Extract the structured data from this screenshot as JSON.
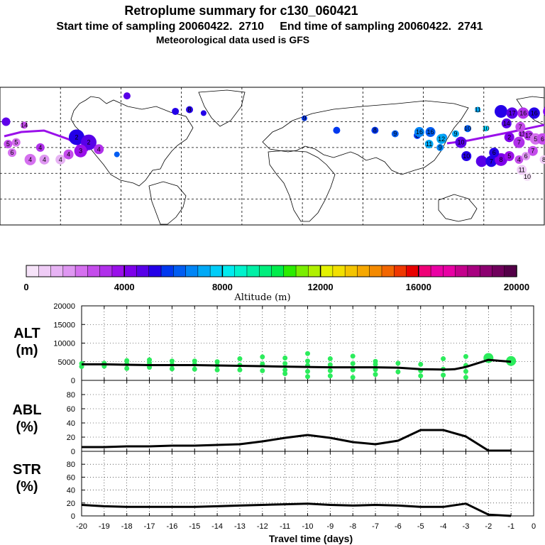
{
  "header": {
    "title": "Retroplume summary for c130_060421",
    "sampling": "Start time of sampling 20060422.  2710     End time of sampling 20060422.  2741",
    "met": "Meteorological data used is GFS"
  },
  "colorbar": {
    "label": "Altitude (m)",
    "ticks": [
      "0",
      "4000",
      "8000",
      "12000",
      "16000",
      "20000"
    ],
    "colors": [
      "#f6e3f9",
      "#efccf6",
      "#e7b3f4",
      "#df97f2",
      "#d570ef",
      "#c44ceb",
      "#b030ea",
      "#9a10ea",
      "#7d00ea",
      "#5800e8",
      "#2400e8",
      "#0038ef",
      "#005df2",
      "#0085f6",
      "#00a9f6",
      "#00cdf8",
      "#00ebef",
      "#00f2cc",
      "#00f0a6",
      "#00ee7d",
      "#00ec4c",
      "#2cec00",
      "#7aee00",
      "#b0f000",
      "#e4f200",
      "#f2e000",
      "#f4c400",
      "#f6a800",
      "#f48a00",
      "#f26600",
      "#ef3800",
      "#e80000",
      "#ef0077",
      "#ea00a4",
      "#e800a4",
      "#c4008c",
      "#a80080",
      "#8c0070",
      "#70005c",
      "#540048"
    ]
  },
  "map": {
    "markers": [
      {
        "lon": -177,
        "lat": 60,
        "r": 6,
        "c": "#5f00ea",
        "t": ""
      },
      {
        "lon": -168,
        "lat": 58,
        "r": 5,
        "c": "#c44ceb",
        "t": "14"
      },
      {
        "lon": -172,
        "lat": 48,
        "r": 6,
        "c": "#d570ef",
        "t": "5"
      },
      {
        "lon": -176,
        "lat": 47,
        "r": 6,
        "c": "#c44ceb",
        "t": "5"
      },
      {
        "lon": -174,
        "lat": 42,
        "r": 6,
        "c": "#d570ef",
        "t": "6"
      },
      {
        "lon": -165,
        "lat": 38,
        "r": 8,
        "c": "#d570ef",
        "t": "4"
      },
      {
        "lon": -158,
        "lat": 38,
        "r": 7,
        "c": "#df97f2",
        "t": "4"
      },
      {
        "lon": -150,
        "lat": 38,
        "r": 7,
        "c": "#e7b3f4",
        "t": "4"
      },
      {
        "lon": -160,
        "lat": 45,
        "r": 6,
        "c": "#b030ea",
        "t": "4"
      },
      {
        "lon": -142,
        "lat": 51,
        "r": 11,
        "c": "#2400e8",
        "t": "2"
      },
      {
        "lon": -136,
        "lat": 48,
        "r": 11,
        "c": "#5800e8",
        "t": "2"
      },
      {
        "lon": -140,
        "lat": 43,
        "r": 9,
        "c": "#9a10ea",
        "t": "3"
      },
      {
        "lon": -131,
        "lat": 44,
        "r": 7,
        "c": "#b030ea",
        "t": "4"
      },
      {
        "lon": -146,
        "lat": 41,
        "r": 7,
        "c": "#c44ceb",
        "t": "4"
      },
      {
        "lon": -122,
        "lat": 41,
        "r": 4,
        "c": "#005df2",
        "t": ""
      },
      {
        "lon": -117,
        "lat": 75,
        "r": 5,
        "c": "#5800e8",
        "t": ""
      },
      {
        "lon": -93,
        "lat": 66,
        "r": 5,
        "c": "#2400e8",
        "t": ""
      },
      {
        "lon": -86,
        "lat": 67,
        "r": 5,
        "c": "#2400e8",
        "t": "8"
      },
      {
        "lon": -79,
        "lat": 65,
        "r": 4,
        "c": "#2400e8",
        "t": ""
      },
      {
        "lon": -29,
        "lat": 62,
        "r": 4,
        "c": "#0038ef",
        "t": "9"
      },
      {
        "lon": -13,
        "lat": 55,
        "r": 5,
        "c": "#0038ef",
        "t": ""
      },
      {
        "lon": 6,
        "lat": 55,
        "r": 5,
        "c": "#0038ef",
        "t": "8"
      },
      {
        "lon": 16,
        "lat": 53,
        "r": 5,
        "c": "#005df2",
        "t": "9"
      },
      {
        "lon": 27,
        "lat": 52,
        "r": 5,
        "c": "#0038ef",
        "t": "8"
      },
      {
        "lon": 40,
        "lat": 51,
        "r": 5,
        "c": "#0085f6",
        "t": "9"
      },
      {
        "lon": 46,
        "lat": 53,
        "r": 5,
        "c": "#00a9f6",
        "t": "9"
      },
      {
        "lon": 52,
        "lat": 56,
        "r": 5,
        "c": "#005df2",
        "t": "10"
      },
      {
        "lon": 61,
        "lat": 56,
        "r": 4,
        "c": "#00cdf8",
        "t": "10"
      },
      {
        "lon": 57,
        "lat": 67,
        "r": 4,
        "c": "#00a9f6",
        "t": "11"
      },
      {
        "lon": 79,
        "lat": 53,
        "r": 5,
        "c": "#b030ea",
        "t": "11"
      },
      {
        "lon": 111,
        "lat": 54,
        "r": 7,
        "c": "#0085f6",
        "t": "16"
      },
      {
        "lon": 119,
        "lat": 54,
        "r": 7,
        "c": "#005df2",
        "t": "16"
      },
      {
        "lon": 127,
        "lat": 50,
        "r": 7,
        "c": "#00a9f6",
        "t": "12"
      },
      {
        "lon": 118,
        "lat": 47,
        "r": 6,
        "c": "#00a9f6",
        "t": "11"
      },
      {
        "lon": 126,
        "lat": 45,
        "r": 5,
        "c": "#0085f6",
        "t": "9"
      },
      {
        "lon": 141,
        "lat": 48,
        "r": 8,
        "c": "#5800e8",
        "t": "10"
      },
      {
        "lon": 145,
        "lat": 40,
        "r": 7,
        "c": "#2400e8",
        "t": "10"
      },
      {
        "lon": 156,
        "lat": 37,
        "r": 8,
        "c": "#5800e8",
        "t": ""
      },
      {
        "lon": 163,
        "lat": 37,
        "r": 8,
        "c": "#2400e8",
        "t": "7"
      },
      {
        "lon": 170,
        "lat": 38,
        "r": 9,
        "c": "#7d00ea",
        "t": "8"
      },
      {
        "lon": 165,
        "lat": 42,
        "r": 7,
        "c": "#2400e8",
        "t": "6"
      },
      {
        "lon": 170,
        "lat": 66,
        "r": 9,
        "c": "#2400e8",
        "t": ""
      },
      {
        "lon": 178,
        "lat": 65,
        "r": 8,
        "c": "#5800e8",
        "t": "17"
      },
      {
        "lon": 186,
        "lat": 65,
        "r": 8,
        "c": "#b030ea",
        "t": "16"
      },
      {
        "lon": 194,
        "lat": 65,
        "r": 8,
        "c": "#2400e8",
        "t": "16"
      },
      {
        "lon": 205,
        "lat": 66,
        "r": 9,
        "c": "#7d00ea",
        "t": "16"
      },
      {
        "lon": 174,
        "lat": 59,
        "r": 7,
        "c": "#5800e8",
        "t": "14"
      },
      {
        "lon": 184,
        "lat": 57,
        "r": 7,
        "c": "#c44ceb",
        "t": "7"
      },
      {
        "lon": 190,
        "lat": 52,
        "r": 7,
        "c": "#b030ea",
        "t": "13"
      },
      {
        "lon": 195,
        "lat": 50,
        "r": 8,
        "c": "#d570ef",
        "t": "5"
      },
      {
        "lon": 200,
        "lat": 50,
        "r": 8,
        "c": "#c44ceb",
        "t": "6"
      },
      {
        "lon": 176,
        "lat": 51,
        "r": 7,
        "c": "#7d00ea",
        "t": "2"
      },
      {
        "lon": 183,
        "lat": 48,
        "r": 8,
        "c": "#b030ea",
        "t": "7"
      },
      {
        "lon": 193,
        "lat": 43,
        "r": 7,
        "c": "#c44ceb",
        "t": "7"
      },
      {
        "lon": 176,
        "lat": 40,
        "r": 7,
        "c": "#9a10ea",
        "t": "5"
      },
      {
        "lon": 183,
        "lat": 38,
        "r": 6,
        "c": "#c44ceb",
        "t": "4"
      },
      {
        "lon": 188,
        "lat": 40,
        "r": 6,
        "c": "#df97f2",
        "t": "6"
      },
      {
        "lon": 201,
        "lat": 38,
        "r": 6,
        "c": "#efccf6",
        "t": "8"
      },
      {
        "lon": 185,
        "lat": 32,
        "r": 7,
        "c": "#efccf6",
        "t": "11"
      },
      {
        "lon": 189,
        "lat": 28,
        "r": 6,
        "c": "#f6e3f9",
        "t": "10"
      }
    ]
  },
  "panels": {
    "alt": {
      "label_top": "ALT",
      "label_bottom": "(m)",
      "yticks": [
        "20000",
        "15000",
        "10000",
        "5000",
        "0"
      ]
    },
    "abl": {
      "label_top": "ABL",
      "label_bottom": "(%)",
      "yticks": [
        "80",
        "60",
        "40",
        "20",
        "0"
      ]
    },
    "str": {
      "label_top": "STR",
      "label_bottom": "(%)",
      "yticks": [
        "80",
        "60",
        "40",
        "20",
        "0"
      ]
    }
  },
  "xaxis": {
    "ticks": [
      "-20",
      "-19",
      "-18",
      "-17",
      "-16",
      "-15",
      "-14",
      "-13",
      "-12",
      "-11",
      "-10",
      "-9",
      "-8",
      "-7",
      "-6",
      "-5",
      "-4",
      "-3",
      "-2",
      "-1",
      "0"
    ],
    "label": "Travel time (days)"
  },
  "chart_data": {
    "type": "line",
    "x_unit": "days",
    "xlim": [
      -20,
      0
    ],
    "xlabel": "Travel time (days)",
    "series": [
      {
        "name": "ALT",
        "ylabel": "ALT (m)",
        "ylim": [
          0,
          20000
        ],
        "x": [
          -20,
          -19,
          -18,
          -17,
          -16,
          -15,
          -14,
          -13,
          -12,
          -11,
          -10,
          -9,
          -8,
          -7,
          -6,
          -5,
          -4,
          -3.5,
          -3,
          -2,
          -1
        ],
        "y": [
          4300,
          4300,
          4200,
          4100,
          4100,
          4100,
          4000,
          3900,
          3800,
          3700,
          3600,
          3500,
          3500,
          3500,
          3400,
          3000,
          2900,
          3000,
          3600,
          5500,
          5000
        ],
        "scatter": [
          {
            "x": -20,
            "y": 3700
          },
          {
            "x": -20,
            "y": 4500
          },
          {
            "x": -19,
            "y": 3800
          },
          {
            "x": -19,
            "y": 4600
          },
          {
            "x": -18,
            "y": 3200
          },
          {
            "x": -18,
            "y": 4400
          },
          {
            "x": -18,
            "y": 5300
          },
          {
            "x": -17,
            "y": 3500
          },
          {
            "x": -17,
            "y": 4700
          },
          {
            "x": -17,
            "y": 5500
          },
          {
            "x": -16,
            "y": 3100
          },
          {
            "x": -16,
            "y": 4200
          },
          {
            "x": -16,
            "y": 5200
          },
          {
            "x": -15,
            "y": 3000
          },
          {
            "x": -15,
            "y": 4300
          },
          {
            "x": -15,
            "y": 5200
          },
          {
            "x": -14,
            "y": 2800
          },
          {
            "x": -14,
            "y": 4000
          },
          {
            "x": -14,
            "y": 5000
          },
          {
            "x": -13,
            "y": 2800
          },
          {
            "x": -13,
            "y": 4100
          },
          {
            "x": -13,
            "y": 5800
          },
          {
            "x": -12,
            "y": 2600
          },
          {
            "x": -12,
            "y": 4400
          },
          {
            "x": -12,
            "y": 6300
          },
          {
            "x": -11,
            "y": 1800
          },
          {
            "x": -11,
            "y": 2800
          },
          {
            "x": -11,
            "y": 4500
          },
          {
            "x": -11,
            "y": 6000
          },
          {
            "x": -10,
            "y": 1000
          },
          {
            "x": -10,
            "y": 2400
          },
          {
            "x": -10,
            "y": 4000
          },
          {
            "x": -10,
            "y": 5200
          },
          {
            "x": -10,
            "y": 7200
          },
          {
            "x": -9,
            "y": 1200
          },
          {
            "x": -9,
            "y": 2600
          },
          {
            "x": -9,
            "y": 4200
          },
          {
            "x": -9,
            "y": 5800
          },
          {
            "x": -8,
            "y": 800
          },
          {
            "x": -8,
            "y": 2800
          },
          {
            "x": -8,
            "y": 4500
          },
          {
            "x": -8,
            "y": 6500
          },
          {
            "x": -7,
            "y": 1600
          },
          {
            "x": -7,
            "y": 2900
          },
          {
            "x": -7,
            "y": 4300
          },
          {
            "x": -7,
            "y": 5100
          },
          {
            "x": -6,
            "y": 2300
          },
          {
            "x": -6,
            "y": 4600
          },
          {
            "x": -5,
            "y": 1200
          },
          {
            "x": -5,
            "y": 2600
          },
          {
            "x": -5,
            "y": 4300
          },
          {
            "x": -4,
            "y": 1400
          },
          {
            "x": -4,
            "y": 3000
          },
          {
            "x": -4,
            "y": 5800
          },
          {
            "x": -3,
            "y": 800
          },
          {
            "x": -3,
            "y": 2400
          },
          {
            "x": -3,
            "y": 4000
          },
          {
            "x": -3,
            "y": 6400
          },
          {
            "x": -2,
            "y": 6000
          },
          {
            "x": -1,
            "y": 5200
          }
        ]
      },
      {
        "name": "ABL",
        "ylabel": "ABL (%)",
        "ylim": [
          0,
          100
        ],
        "x": [
          -20,
          -19,
          -18,
          -17,
          -16,
          -15,
          -14,
          -13,
          -12,
          -11,
          -10,
          -9,
          -8,
          -7,
          -6,
          -5,
          -4,
          -3,
          -2,
          -1
        ],
        "y": [
          6,
          6,
          7,
          7,
          8,
          8,
          9,
          10,
          14,
          19,
          23,
          19,
          13,
          10,
          15,
          30,
          30,
          21,
          1,
          1
        ]
      },
      {
        "name": "STR",
        "ylabel": "STR (%)",
        "ylim": [
          0,
          100
        ],
        "x": [
          -20,
          -19,
          -18,
          -17,
          -16,
          -15,
          -14,
          -13,
          -12,
          -11,
          -10,
          -9,
          -8,
          -7,
          -6,
          -5,
          -4,
          -3,
          -2,
          -1
        ],
        "y": [
          17,
          15,
          14,
          14,
          14,
          14,
          15,
          16,
          17,
          18,
          19,
          17,
          16,
          17,
          16,
          14,
          14,
          19,
          2,
          0
        ]
      }
    ]
  }
}
